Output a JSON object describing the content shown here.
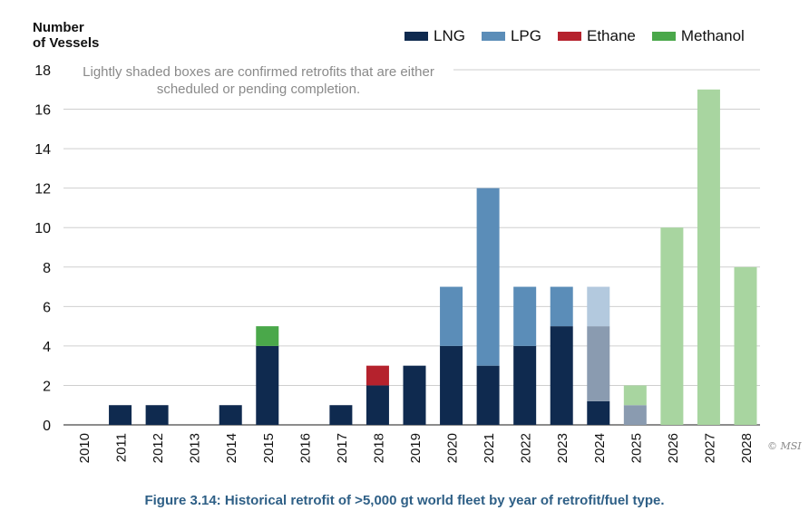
{
  "chart_data": {
    "type": "bar",
    "stacked": true,
    "ylabel_lines": [
      "Number",
      "of Vessels"
    ],
    "ylim": [
      0,
      18
    ],
    "yticks": [
      0,
      2,
      4,
      6,
      8,
      10,
      12,
      14,
      16,
      18
    ],
    "grid": true,
    "legend_position": "top-right",
    "categories": [
      "2010",
      "2011",
      "2012",
      "2013",
      "2014",
      "2015",
      "2016",
      "2017",
      "2018",
      "2019",
      "2020",
      "2021",
      "2022",
      "2023",
      "2024",
      "2025",
      "2026",
      "2027",
      "2028"
    ],
    "series": [
      {
        "name": "LNG",
        "color": "#0f2a4f",
        "values": [
          0,
          1,
          1,
          0,
          1,
          4,
          0,
          1,
          2,
          3,
          4,
          3,
          4,
          5,
          1.2,
          0,
          0,
          0,
          0
        ]
      },
      {
        "name": "LNG",
        "color": "#8a9bb0",
        "shade": "confirmed",
        "values": [
          0,
          0,
          0,
          0,
          0,
          0,
          0,
          0,
          0,
          0,
          0,
          0,
          0,
          0,
          3.8,
          1,
          0,
          0,
          0
        ]
      },
      {
        "name": "LPG",
        "color": "#5b8db8",
        "values": [
          0,
          0,
          0,
          0,
          0,
          0,
          0,
          0,
          0,
          0,
          3,
          9,
          3,
          2,
          0,
          0,
          0,
          0,
          0
        ]
      },
      {
        "name": "LPG",
        "color": "#b3c9de",
        "shade": "confirmed",
        "values": [
          0,
          0,
          0,
          0,
          0,
          0,
          0,
          0,
          0,
          0,
          0,
          0,
          0,
          0,
          2,
          0,
          0,
          0,
          0
        ]
      },
      {
        "name": "Ethane",
        "color": "#b5222d",
        "values": [
          0,
          0,
          0,
          0,
          0,
          0,
          0,
          0,
          1,
          0,
          0,
          0,
          0,
          0,
          0,
          0,
          0,
          0,
          0
        ]
      },
      {
        "name": "Methanol",
        "color": "#4aa84a",
        "values": [
          0,
          0,
          0,
          0,
          0,
          1,
          0,
          0,
          0,
          0,
          0,
          0,
          0,
          0,
          0,
          0,
          0,
          0,
          0
        ]
      },
      {
        "name": "Methanol",
        "color": "#a8d5a0",
        "shade": "confirmed",
        "values": [
          0,
          0,
          0,
          0,
          0,
          0,
          0,
          0,
          0,
          0,
          0,
          0,
          0,
          0,
          0,
          1,
          10,
          17,
          8
        ]
      }
    ],
    "legend": [
      {
        "name": "LNG",
        "color": "#0f2a4f"
      },
      {
        "name": "LPG",
        "color": "#5b8db8"
      },
      {
        "name": "Ethane",
        "color": "#b5222d"
      },
      {
        "name": "Methanol",
        "color": "#4aa84a"
      }
    ],
    "note": "Lightly shaded boxes are confirmed retrofits that are either scheduled or pending completion.",
    "caption": "Figure 3.14: Historical retrofit of >5,000 gt world fleet by year of retrofit/fuel type.",
    "credit": "© MSI"
  }
}
